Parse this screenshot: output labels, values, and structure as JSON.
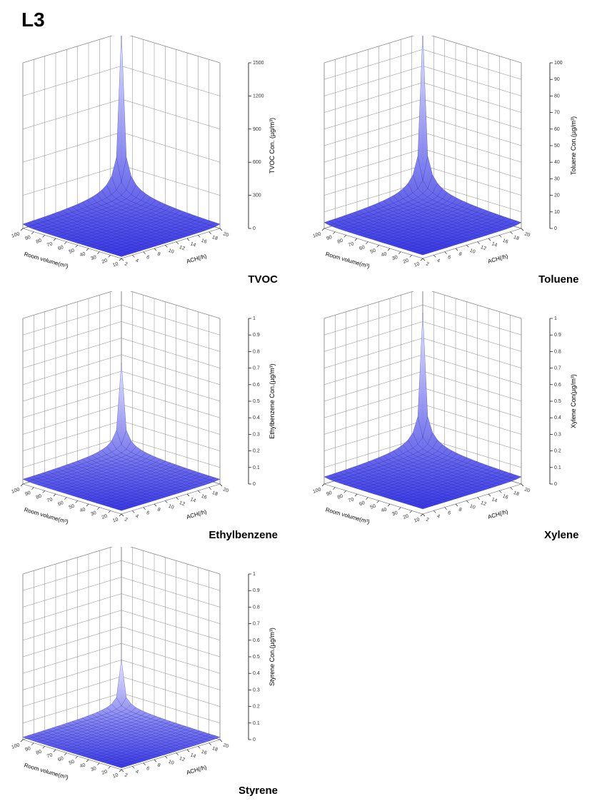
{
  "page": {
    "title": "L3",
    "background_color": "#ffffff"
  },
  "common": {
    "x_axis_label": "ACH(/h)",
    "y_axis_label": "Room volume(m³)",
    "surface_color_top": "#e8e8ff",
    "surface_color_bottom": "#3030e0",
    "mesh_color": "#2020c0",
    "wall_color": "#666666",
    "grid_color": "#888888",
    "tick_color": "#333333",
    "label_color": "#000000",
    "x_range": [
      2,
      20
    ],
    "y_range": [
      10,
      100
    ],
    "x_ticks": [
      2,
      4,
      6,
      8,
      10,
      12,
      14,
      16,
      18,
      20
    ],
    "y_ticks": [
      10,
      20,
      30,
      40,
      50,
      60,
      70,
      80,
      90,
      100
    ],
    "peak_corner": "back_right",
    "mesh_density": 20,
    "surface_type": "hyperbolic_decay"
  },
  "charts": [
    {
      "id": "tvoc",
      "label": "TVOC",
      "z_axis_label": "TVOC Con. (µg/m³)",
      "z_range": [
        0,
        1500
      ],
      "z_ticks": [
        0,
        300,
        600,
        900,
        1200,
        1500
      ],
      "peak_value": 1500,
      "floor_value": 15
    },
    {
      "id": "toluene",
      "label": "Toluene",
      "z_axis_label": "Toluene Con.(µg/m³)",
      "z_range": [
        0,
        100
      ],
      "z_ticks": [
        0,
        10,
        20,
        30,
        40,
        50,
        60,
        70,
        80,
        90,
        100
      ],
      "peak_value": 100,
      "floor_value": 2
    },
    {
      "id": "ethylbenzene",
      "label": "Ethylbenzene",
      "z_axis_label": "Ethylbenzene Con.(µg/m³)",
      "z_range": [
        0,
        1.0
      ],
      "z_ticks": [
        0.0,
        0.1,
        0.2,
        0.3,
        0.4,
        0.5,
        0.6,
        0.7,
        0.8,
        0.9,
        1.0
      ],
      "peak_value": 0.55,
      "floor_value": 0.02
    },
    {
      "id": "xylene",
      "label": "Xylene",
      "z_axis_label": "Xylene Con(µg/m³)",
      "z_range": [
        0,
        1.0
      ],
      "z_ticks": [
        0.0,
        0.1,
        0.2,
        0.3,
        0.4,
        0.5,
        0.6,
        0.7,
        0.8,
        0.9,
        1.0
      ],
      "peak_value": 0.85,
      "floor_value": 0.03
    },
    {
      "id": "styrene",
      "label": "Styrene",
      "z_axis_label": "Styrene Con.(µg/m³)",
      "z_range": [
        0,
        1.0
      ],
      "z_ticks": [
        0.0,
        0.1,
        0.2,
        0.3,
        0.4,
        0.5,
        0.6,
        0.7,
        0.8,
        0.9,
        1.0
      ],
      "peak_value": 0.3,
      "floor_value": 0.01
    }
  ]
}
